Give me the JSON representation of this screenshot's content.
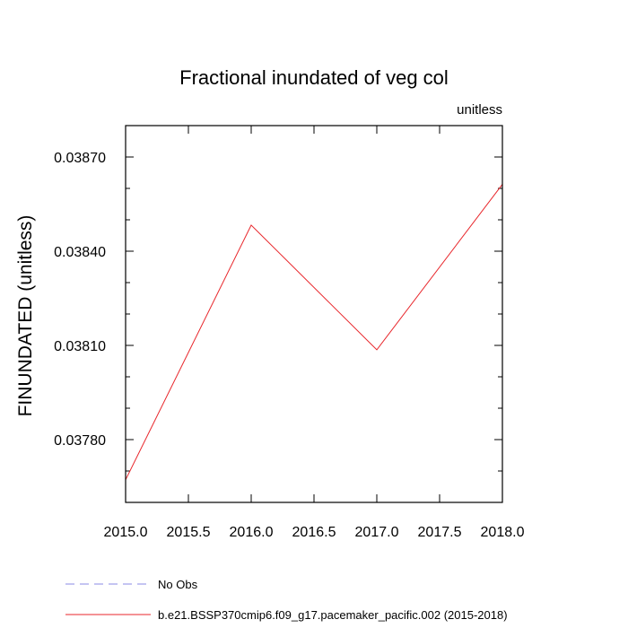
{
  "chart_data": {
    "type": "line",
    "title": "Fractional inundated of veg col",
    "units_label": "unitless",
    "ylabel": "FINUNDATED  (unitless)",
    "xlabel": "",
    "xlim": [
      2015.0,
      2018.0
    ],
    "ylim": [
      0.0376,
      0.0388
    ],
    "x_ticks": [
      2015.0,
      2015.5,
      2016.0,
      2016.5,
      2017.0,
      2017.5,
      2018.0
    ],
    "x_tick_labels": [
      "2015.0",
      "2015.5",
      "2016.0",
      "2016.5",
      "2017.0",
      "2017.5",
      "2018.0"
    ],
    "y_ticks": [
      0.0378,
      0.0381,
      0.0384,
      0.0387
    ],
    "y_tick_labels": [
      "0.03780",
      "0.03810",
      "0.03840",
      "0.03870"
    ],
    "y_minor_step": 0.0001,
    "x_minor_step": 0.5,
    "grid": false,
    "legend_position": "bottom-left, below plot",
    "series": [
      {
        "name": "b.e21.BSSP370cmip6.f09_g17.pacemaker_pacific.002 (2015-2018)",
        "color": "#e8262b",
        "dash": "solid",
        "x": [
          2015.0,
          2016.0,
          2017.0,
          2018.0
        ],
        "y": [
          0.037672,
          0.038483,
          0.038086,
          0.038613
        ]
      }
    ],
    "legend": [
      {
        "label": "No Obs",
        "color": "#8a8ae6",
        "dash": "dashed"
      },
      {
        "label": "b.e21.BSSP370cmip6.f09_g17.pacemaker_pacific.002 (2015-2018)",
        "color": "#e8262b",
        "dash": "solid"
      }
    ]
  }
}
